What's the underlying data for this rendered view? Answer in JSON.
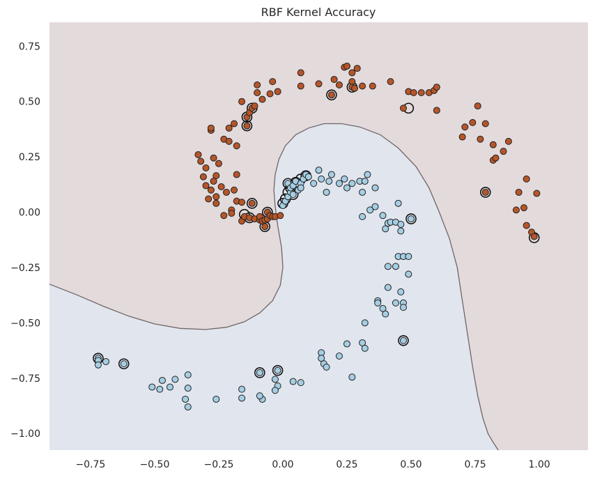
{
  "chart_data": {
    "type": "scatter",
    "title": "RBF Kernel Accuracy",
    "xlabel": "",
    "ylabel": "",
    "xlim": [
      -0.91,
      1.19
    ],
    "ylim": [
      -1.075,
      0.858
    ],
    "grid": false,
    "xticks": [
      -0.75,
      -0.5,
      -0.25,
      0.0,
      0.25,
      0.5,
      0.75,
      1.0
    ],
    "xtick_labels": [
      "−0.75",
      "−0.50",
      "−0.25",
      "0.00",
      "0.25",
      "0.50",
      "0.75",
      "1.00"
    ],
    "yticks": [
      0.75,
      0.5,
      0.25,
      0.0,
      -0.25,
      -0.5,
      -0.75,
      -1.0
    ],
    "ytick_labels": [
      "0.75",
      "0.50",
      "0.25",
      "0.00",
      "−0.25",
      "−0.50",
      "−0.75",
      "−1.00"
    ],
    "colors": {
      "region_class_0": "#e3dadc",
      "region_class_1": "#e1e5ee",
      "boundary": "#6e6565",
      "class_0_point": "#b5562a",
      "class_1_point": "#a6cee3",
      "point_edge": "#1f1f1f"
    },
    "decision_boundary": [
      [
        -0.91,
        -0.325
      ],
      [
        -0.8,
        -0.375
      ],
      [
        -0.7,
        -0.425
      ],
      [
        -0.6,
        -0.47
      ],
      [
        -0.5,
        -0.505
      ],
      [
        -0.4,
        -0.525
      ],
      [
        -0.3,
        -0.53
      ],
      [
        -0.22,
        -0.52
      ],
      [
        -0.15,
        -0.495
      ],
      [
        -0.09,
        -0.455
      ],
      [
        -0.04,
        -0.4
      ],
      [
        -0.01,
        -0.33
      ],
      [
        0.0,
        -0.25
      ],
      [
        -0.005,
        -0.16
      ],
      [
        -0.02,
        -0.06
      ],
      [
        -0.03,
        0.03
      ],
      [
        -0.035,
        0.1
      ],
      [
        -0.03,
        0.17
      ],
      [
        -0.015,
        0.24
      ],
      [
        0.01,
        0.3
      ],
      [
        0.05,
        0.35
      ],
      [
        0.1,
        0.38
      ],
      [
        0.16,
        0.4
      ],
      [
        0.23,
        0.4
      ],
      [
        0.3,
        0.385
      ],
      [
        0.38,
        0.35
      ],
      [
        0.45,
        0.29
      ],
      [
        0.52,
        0.205
      ],
      [
        0.57,
        0.11
      ],
      [
        0.61,
        0.0
      ],
      [
        0.65,
        -0.12
      ],
      [
        0.68,
        -0.25
      ],
      [
        0.7,
        -0.4
      ],
      [
        0.72,
        -0.55
      ],
      [
        0.74,
        -0.7
      ],
      [
        0.76,
        -0.83
      ],
      [
        0.78,
        -0.93
      ],
      [
        0.8,
        -1.0
      ],
      [
        0.82,
        -1.04
      ],
      [
        0.84,
        -1.075
      ]
    ],
    "series": [
      {
        "class": 0,
        "color": "#b5562a",
        "points": [
          [
            -0.33,
            0.26
          ],
          [
            -0.32,
            0.23
          ],
          [
            -0.31,
            0.16
          ],
          [
            -0.3,
            0.2
          ],
          [
            -0.3,
            0.12
          ],
          [
            -0.29,
            0.06
          ],
          [
            -0.28,
            0.1
          ],
          [
            -0.28,
            0.37
          ],
          [
            -0.28,
            0.38
          ],
          [
            -0.27,
            0.245
          ],
          [
            -0.27,
            0.14
          ],
          [
            -0.26,
            0.165
          ],
          [
            -0.26,
            0.07
          ],
          [
            -0.26,
            0.04
          ],
          [
            -0.25,
            0.22
          ],
          [
            -0.24,
            0.115
          ],
          [
            -0.23,
            0.33
          ],
          [
            -0.23,
            -0.015
          ],
          [
            -0.22,
            0.09
          ],
          [
            -0.21,
            0.38
          ],
          [
            -0.21,
            0.32
          ],
          [
            -0.2,
            0.01
          ],
          [
            -0.2,
            -0.005
          ],
          [
            -0.19,
            0.1
          ],
          [
            -0.19,
            0.4
          ],
          [
            -0.18,
            0.3
          ],
          [
            -0.18,
            0.05
          ],
          [
            -0.18,
            0.17
          ],
          [
            -0.16,
            0.045
          ],
          [
            -0.16,
            0.5
          ],
          [
            -0.16,
            -0.04
          ],
          [
            -0.15,
            -0.02
          ],
          [
            -0.14,
            0.39
          ],
          [
            -0.14,
            0.43
          ],
          [
            -0.13,
            0.45
          ],
          [
            -0.13,
            -0.025
          ],
          [
            -0.12,
            0.04
          ],
          [
            -0.12,
            0.47
          ],
          [
            -0.11,
            -0.03
          ],
          [
            -0.11,
            0.48
          ],
          [
            -0.1,
            0.575
          ],
          [
            -0.1,
            0.54
          ],
          [
            -0.09,
            -0.035
          ],
          [
            -0.09,
            -0.02
          ],
          [
            -0.08,
            0.51
          ],
          [
            -0.08,
            -0.04
          ],
          [
            -0.07,
            -0.065
          ],
          [
            -0.07,
            -0.035
          ],
          [
            -0.06,
            -0.03
          ],
          [
            -0.06,
            0.0
          ],
          [
            -0.05,
            0.535
          ],
          [
            -0.05,
            -0.015
          ],
          [
            -0.04,
            0.59
          ],
          [
            -0.04,
            -0.02
          ],
          [
            -0.03,
            -0.02
          ],
          [
            -0.02,
            0.545
          ],
          [
            -0.01,
            -0.015
          ],
          [
            0.07,
            0.63
          ],
          [
            0.07,
            0.57
          ],
          [
            0.14,
            0.58
          ],
          [
            0.19,
            0.53
          ],
          [
            0.2,
            0.6
          ],
          [
            0.22,
            0.575
          ],
          [
            0.24,
            0.655
          ],
          [
            0.25,
            0.66
          ],
          [
            0.27,
            0.63
          ],
          [
            0.27,
            0.59
          ],
          [
            0.27,
            0.565
          ],
          [
            0.28,
            0.56
          ],
          [
            0.29,
            0.65
          ],
          [
            0.31,
            0.57
          ],
          [
            0.35,
            0.57
          ],
          [
            0.42,
            0.59
          ],
          [
            0.47,
            0.47
          ],
          [
            0.49,
            0.545
          ],
          [
            0.51,
            0.54
          ],
          [
            0.54,
            0.54
          ],
          [
            0.57,
            0.54
          ],
          [
            0.59,
            0.55
          ],
          [
            0.6,
            0.565
          ],
          [
            0.6,
            0.46
          ],
          [
            0.7,
            0.34
          ],
          [
            0.71,
            0.385
          ],
          [
            0.74,
            0.405
          ],
          [
            0.76,
            0.48
          ],
          [
            0.77,
            0.33
          ],
          [
            0.79,
            0.4
          ],
          [
            0.79,
            0.09
          ],
          [
            0.82,
            0.305
          ],
          [
            0.82,
            0.235
          ],
          [
            0.83,
            0.245
          ],
          [
            0.86,
            0.275
          ],
          [
            0.88,
            0.32
          ],
          [
            0.91,
            0.01
          ],
          [
            0.92,
            0.09
          ],
          [
            0.94,
            0.02
          ],
          [
            0.95,
            0.15
          ],
          [
            0.95,
            -0.06
          ],
          [
            0.97,
            -0.09
          ],
          [
            0.98,
            -0.11
          ],
          [
            0.99,
            0.085
          ]
        ]
      },
      {
        "class": 1,
        "color": "#a6cee3",
        "points": [
          [
            0.0,
            0.03
          ],
          [
            0.01,
            0.05
          ],
          [
            0.02,
            0.07
          ],
          [
            0.02,
            0.13
          ],
          [
            0.03,
            0.09
          ],
          [
            0.03,
            0.11
          ],
          [
            0.04,
            0.12
          ],
          [
            0.04,
            0.08
          ],
          [
            0.05,
            0.14
          ],
          [
            0.06,
            0.1
          ],
          [
            0.07,
            0.13
          ],
          [
            0.07,
            0.11
          ],
          [
            0.08,
            0.15
          ],
          [
            0.09,
            0.17
          ],
          [
            0.1,
            0.16
          ],
          [
            0.12,
            0.13
          ],
          [
            0.14,
            0.19
          ],
          [
            0.15,
            0.15
          ],
          [
            0.17,
            0.09
          ],
          [
            0.18,
            0.14
          ],
          [
            0.19,
            0.17
          ],
          [
            0.22,
            0.13
          ],
          [
            0.24,
            0.15
          ],
          [
            0.25,
            0.11
          ],
          [
            0.27,
            0.13
          ],
          [
            0.3,
            0.14
          ],
          [
            0.31,
            0.09
          ],
          [
            0.31,
            -0.02
          ],
          [
            0.32,
            0.14
          ],
          [
            0.33,
            0.17
          ],
          [
            0.34,
            0.01
          ],
          [
            0.36,
            0.11
          ],
          [
            0.36,
            0.025
          ],
          [
            0.39,
            -0.015
          ],
          [
            0.4,
            -0.075
          ],
          [
            0.41,
            -0.05
          ],
          [
            0.42,
            -0.045
          ],
          [
            0.44,
            -0.045
          ],
          [
            0.45,
            0.04
          ],
          [
            0.45,
            -0.2
          ],
          [
            0.46,
            -0.055
          ],
          [
            0.46,
            -0.085
          ],
          [
            0.41,
            -0.245
          ],
          [
            0.44,
            -0.245
          ],
          [
            0.47,
            -0.2
          ],
          [
            0.49,
            -0.2
          ],
          [
            0.49,
            -0.28
          ],
          [
            0.5,
            -0.03
          ],
          [
            0.37,
            -0.4
          ],
          [
            0.37,
            -0.41
          ],
          [
            0.39,
            -0.435
          ],
          [
            0.4,
            -0.46
          ],
          [
            0.41,
            -0.34
          ],
          [
            0.44,
            -0.41
          ],
          [
            0.46,
            -0.36
          ],
          [
            0.47,
            -0.41
          ],
          [
            0.47,
            -0.43
          ],
          [
            0.47,
            -0.58
          ],
          [
            0.32,
            -0.5
          ],
          [
            0.31,
            -0.59
          ],
          [
            0.32,
            -0.615
          ],
          [
            0.25,
            -0.595
          ],
          [
            0.22,
            -0.65
          ],
          [
            0.15,
            -0.635
          ],
          [
            0.15,
            -0.66
          ],
          [
            0.16,
            -0.685
          ],
          [
            0.17,
            -0.7
          ],
          [
            0.27,
            -0.745
          ],
          [
            0.07,
            -0.77
          ],
          [
            0.04,
            -0.765
          ],
          [
            -0.02,
            -0.715
          ],
          [
            -0.02,
            -0.785
          ],
          [
            -0.03,
            -0.755
          ],
          [
            -0.03,
            -0.805
          ],
          [
            -0.09,
            -0.725
          ],
          [
            -0.08,
            -0.845
          ],
          [
            -0.09,
            -0.83
          ],
          [
            -0.16,
            -0.8
          ],
          [
            -0.16,
            -0.84
          ],
          [
            -0.26,
            -0.845
          ],
          [
            -0.37,
            -0.735
          ],
          [
            -0.37,
            -0.795
          ],
          [
            -0.38,
            -0.845
          ],
          [
            -0.37,
            -0.88
          ],
          [
            -0.42,
            -0.755
          ],
          [
            -0.44,
            -0.79
          ],
          [
            -0.47,
            -0.76
          ],
          [
            -0.48,
            -0.8
          ],
          [
            -0.51,
            -0.79
          ],
          [
            -0.62,
            -0.685
          ],
          [
            -0.69,
            -0.675
          ],
          [
            -0.72,
            -0.66
          ],
          [
            -0.72,
            -0.67
          ],
          [
            -0.72,
            -0.69
          ]
        ]
      }
    ],
    "support_vectors": [
      [
        -0.14,
        0.39
      ],
      [
        -0.14,
        0.43
      ],
      [
        -0.12,
        0.47
      ],
      [
        -0.12,
        0.04
      ],
      [
        -0.15,
        -0.01
      ],
      [
        -0.13,
        -0.025
      ],
      [
        -0.07,
        -0.065
      ],
      [
        -0.06,
        0.0
      ],
      [
        0.19,
        0.53
      ],
      [
        0.27,
        0.565
      ],
      [
        0.49,
        0.47
      ],
      [
        0.79,
        0.09
      ],
      [
        0.98,
        -0.115
      ],
      [
        0.0,
        0.04
      ],
      [
        0.01,
        0.06
      ],
      [
        0.02,
        0.09
      ],
      [
        0.03,
        0.11
      ],
      [
        0.02,
        0.13
      ],
      [
        0.04,
        0.08
      ],
      [
        0.05,
        0.135
      ],
      [
        0.07,
        0.15
      ],
      [
        0.09,
        0.165
      ],
      [
        0.5,
        -0.03
      ],
      [
        0.47,
        -0.58
      ],
      [
        -0.02,
        -0.715
      ],
      [
        -0.09,
        -0.725
      ],
      [
        -0.62,
        -0.685
      ],
      [
        -0.72,
        -0.66
      ]
    ]
  }
}
